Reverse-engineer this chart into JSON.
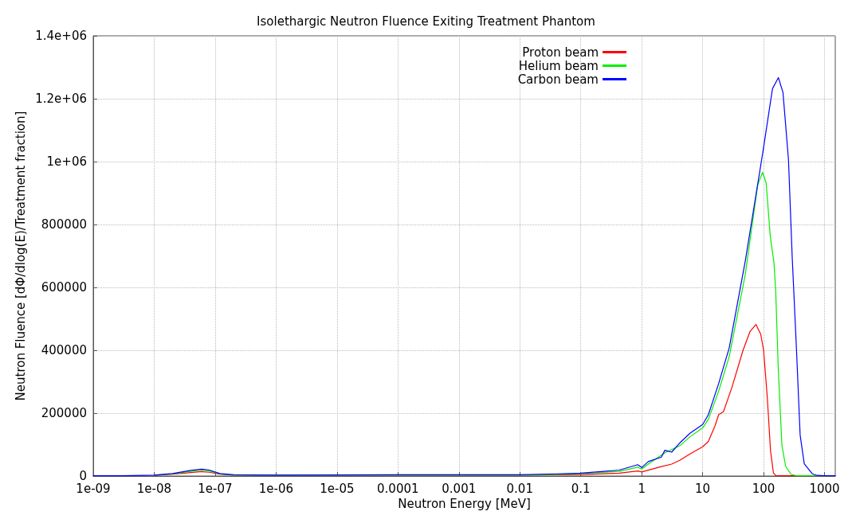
{
  "chart_data": {
    "type": "line",
    "title": "Isolethargic Neutron Fluence Exiting Treatment Phantom",
    "xlabel": "Neutron Energy [MeV]",
    "ylabel": "Neutron Fluence [dΦ/dlog(E)/Treatment fraction]",
    "log": "x",
    "grid": true,
    "legend": "top right",
    "marker": "none",
    "line_style": "solid",
    "xlim": [
      1e-09,
      1500
    ],
    "xticks": [
      {
        "value": 1e-09,
        "label": "1e-09"
      },
      {
        "value": 1e-08,
        "label": "1e-08"
      },
      {
        "value": 1e-07,
        "label": "1e-07"
      },
      {
        "value": 1e-06,
        "label": "1e-06"
      },
      {
        "value": 1e-05,
        "label": "1e-05"
      },
      0.0001,
      0.001,
      0.01,
      0.1,
      1,
      10,
      100,
      1000
    ],
    "ylim": [
      0,
      1400000
    ],
    "yticks": [
      0,
      200000,
      400000,
      600000,
      800000,
      {
        "value": 1000000,
        "label": "1e+06"
      },
      {
        "value": 1200000,
        "label": "1.2e+06"
      },
      {
        "value": 1400000,
        "label": "1.4e+06"
      }
    ],
    "series": [
      {
        "name": "Proton beam",
        "color": "#ff0000",
        "x": [
          1e-08,
          2e-08,
          4e-08,
          6e-08,
          8e-08,
          1.2e-07,
          2e-07,
          1e-06,
          0.0001,
          0.001,
          0.01,
          0.04,
          0.1,
          0.43,
          0.86,
          1,
          2.1,
          3.1,
          4.2,
          6.2,
          10,
          12.4,
          16,
          18.3,
          22,
          30,
          46,
          60,
          75,
          90,
          100,
          115,
          130,
          145,
          160,
          1500
        ],
        "values": [
          2000,
          6000,
          11000,
          14000,
          12000,
          6000,
          3000,
          3000,
          3000,
          3000,
          3000,
          4000,
          5000,
          9000,
          16000,
          13000,
          30000,
          38000,
          50000,
          70000,
          93000,
          110000,
          160000,
          195000,
          205000,
          280000,
          400000,
          460000,
          482000,
          450000,
          400000,
          250000,
          80000,
          10000,
          1000,
          1000
        ]
      },
      {
        "name": "Helium beam",
        "color": "#00ee00",
        "x": [
          1e-08,
          2e-08,
          4e-08,
          6e-08,
          8e-08,
          1.2e-07,
          2e-07,
          1e-06,
          0.0001,
          0.001,
          0.01,
          0.04,
          0.1,
          0.43,
          0.86,
          1,
          1.28,
          2.4,
          4.2,
          6.2,
          10,
          12.4,
          18.3,
          27.3,
          50,
          80,
          96,
          110,
          129,
          148,
          158,
          174,
          200,
          230,
          282,
          350,
          1500
        ],
        "values": [
          3000,
          7000,
          15000,
          19000,
          16000,
          7000,
          3000,
          3000,
          3000,
          3000,
          3000,
          5000,
          8000,
          15000,
          28000,
          22000,
          38000,
          74000,
          96000,
          125000,
          153000,
          180000,
          270000,
          380000,
          640000,
          925000,
          966000,
          933000,
          761000,
          679000,
          589000,
          343000,
          97000,
          31000,
          5000,
          1000,
          1000
        ]
      },
      {
        "name": "Carbon beam",
        "color": "#0000ff",
        "x": [
          1e-09,
          3e-09,
          1e-08,
          2e-08,
          4e-08,
          6e-08,
          8e-08,
          1.2e-07,
          2e-07,
          1e-06,
          0.0001,
          0.001,
          0.01,
          0.04,
          0.1,
          0.43,
          0.86,
          1,
          1.28,
          2.1,
          2.4,
          3.1,
          4.2,
          6.2,
          10,
          12.4,
          18.3,
          27.3,
          50,
          96,
          140,
          175,
          208,
          256,
          295,
          347,
          398,
          465,
          630,
          760,
          1000,
          1500
        ],
        "values": [
          1000,
          1000,
          3000,
          8000,
          18000,
          22000,
          19000,
          8000,
          4000,
          3000,
          4000,
          4000,
          4000,
          7000,
          9000,
          19000,
          36000,
          27000,
          46000,
          60000,
          82000,
          76000,
          105000,
          136000,
          164000,
          195000,
          294000,
          408000,
          683000,
          1023000,
          1232000,
          1267000,
          1220000,
          1007000,
          695000,
          400000,
          130000,
          39000,
          7000,
          2000,
          1000,
          1000
        ]
      }
    ]
  }
}
